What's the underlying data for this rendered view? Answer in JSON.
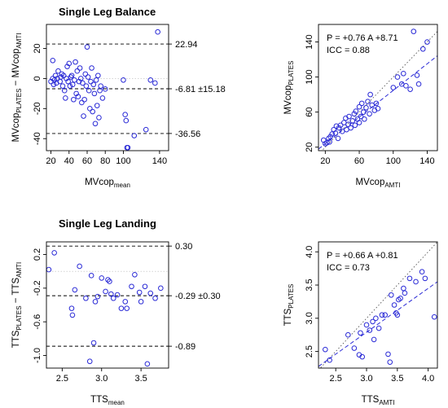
{
  "sections": [
    {
      "title": "Single Leg Balance"
    },
    {
      "title": "Single Leg Landing"
    }
  ],
  "chart_data": [
    {
      "type": "scatter",
      "xlabel": {
        "base": "MVcop",
        "sub": "mean"
      },
      "ylabel": {
        "parts": [
          {
            "base": "MVcop",
            "sub": "PLATES"
          },
          {
            "base": " − MVcop",
            "sub": "AMTI"
          }
        ]
      },
      "xlim": [
        15,
        150
      ],
      "ylim": [
        -48,
        36
      ],
      "xticks": [
        20,
        40,
        60,
        80,
        100,
        140
      ],
      "yticks": [
        -40,
        -20,
        0,
        20
      ],
      "ref_lines": [
        {
          "y": 22.94,
          "label": "22.94"
        },
        {
          "y": -6.81,
          "label": "-6.81 ±15.18"
        },
        {
          "y": -36.56,
          "label": "-36.56"
        }
      ],
      "zero_line": 0,
      "points": [
        [
          20,
          -2
        ],
        [
          22,
          0
        ],
        [
          22,
          12
        ],
        [
          23,
          -4
        ],
        [
          24,
          -1
        ],
        [
          25,
          2
        ],
        [
          26,
          -3
        ],
        [
          27,
          0
        ],
        [
          28,
          5
        ],
        [
          30,
          -2
        ],
        [
          31,
          1
        ],
        [
          32,
          3
        ],
        [
          33,
          -5
        ],
        [
          34,
          2
        ],
        [
          35,
          -8
        ],
        [
          36,
          -13
        ],
        [
          37,
          0
        ],
        [
          38,
          8
        ],
        [
          39,
          -2
        ],
        [
          40,
          10
        ],
        [
          41,
          -5
        ],
        [
          42,
          1
        ],
        [
          43,
          2
        ],
        [
          44,
          -4
        ],
        [
          45,
          -14
        ],
        [
          46,
          -1
        ],
        [
          47,
          11
        ],
        [
          48,
          -10
        ],
        [
          49,
          5
        ],
        [
          50,
          -12
        ],
        [
          51,
          -2
        ],
        [
          52,
          7
        ],
        [
          53,
          0
        ],
        [
          54,
          -16
        ],
        [
          55,
          -3
        ],
        [
          56,
          -25
        ],
        [
          57,
          -14
        ],
        [
          58,
          3
        ],
        [
          59,
          -5
        ],
        [
          60,
          21
        ],
        [
          61,
          1
        ],
        [
          62,
          -8
        ],
        [
          63,
          -20
        ],
        [
          64,
          -2
        ],
        [
          65,
          7
        ],
        [
          66,
          -22
        ],
        [
          67,
          -4
        ],
        [
          68,
          -10
        ],
        [
          69,
          -30
        ],
        [
          70,
          -1
        ],
        [
          71,
          -18
        ],
        [
          72,
          2
        ],
        [
          73,
          -26
        ],
        [
          74,
          -8
        ],
        [
          75,
          -5
        ],
        [
          77,
          -13
        ],
        [
          80,
          -7
        ],
        [
          100,
          -1
        ],
        [
          102,
          -24
        ],
        [
          103,
          -28
        ],
        [
          104,
          -46
        ],
        [
          105,
          -46
        ],
        [
          112,
          -38
        ],
        [
          125,
          -34
        ],
        [
          130,
          -1
        ],
        [
          135,
          -3
        ],
        [
          138,
          31
        ]
      ]
    },
    {
      "type": "scatter",
      "xlabel": {
        "base": "MVcop",
        "sub": "AMTI"
      },
      "ylabel": {
        "parts": [
          {
            "base": "MVcop",
            "sub": "PLATES"
          }
        ]
      },
      "xlim": [
        12,
        152
      ],
      "ylim": [
        16,
        160
      ],
      "xticks": [
        20,
        60,
        100,
        140
      ],
      "yticks": [
        20,
        60,
        100,
        140
      ],
      "annotation": [
        "P = +0.76 A +8.71",
        "ICC = 0.88"
      ],
      "fit": {
        "slope": 0.76,
        "intercept": 8.71
      },
      "identity": true,
      "points": [
        [
          18,
          28
        ],
        [
          20,
          24
        ],
        [
          22,
          25
        ],
        [
          24,
          30
        ],
        [
          25,
          26
        ],
        [
          26,
          32
        ],
        [
          28,
          35
        ],
        [
          30,
          40
        ],
        [
          32,
          36
        ],
        [
          33,
          44
        ],
        [
          35,
          30
        ],
        [
          36,
          42
        ],
        [
          38,
          45
        ],
        [
          40,
          38
        ],
        [
          42,
          48
        ],
        [
          44,
          53
        ],
        [
          45,
          40
        ],
        [
          47,
          46
        ],
        [
          48,
          55
        ],
        [
          50,
          42
        ],
        [
          52,
          50
        ],
        [
          54,
          58
        ],
        [
          55,
          45
        ],
        [
          56,
          61
        ],
        [
          58,
          52
        ],
        [
          60,
          48
        ],
        [
          60,
          66
        ],
        [
          62,
          55
        ],
        [
          63,
          70
        ],
        [
          65,
          60
        ],
        [
          66,
          52
        ],
        [
          68,
          65
        ],
        [
          70,
          72
        ],
        [
          72,
          58
        ],
        [
          73,
          80
        ],
        [
          75,
          68
        ],
        [
          78,
          62
        ],
        [
          80,
          70
        ],
        [
          82,
          64
        ],
        [
          100,
          88
        ],
        [
          105,
          100
        ],
        [
          110,
          92
        ],
        [
          112,
          104
        ],
        [
          115,
          90
        ],
        [
          120,
          86
        ],
        [
          124,
          152
        ],
        [
          128,
          102
        ],
        [
          130,
          92
        ],
        [
          135,
          132
        ],
        [
          140,
          140
        ]
      ]
    },
    {
      "type": "scatter",
      "xlabel": {
        "base": "TTS",
        "sub": "mean"
      },
      "ylabel": {
        "parts": [
          {
            "base": "TTS",
            "sub": "PLATES"
          },
          {
            "base": " − TTS",
            "sub": "AMTI"
          }
        ]
      },
      "xlim": [
        2.3,
        3.85
      ],
      "ylim": [
        -1.15,
        0.35
      ],
      "xticks": [
        2.5,
        3.0,
        3.5
      ],
      "yticks": [
        -1.0,
        -0.6,
        -0.2,
        0.2
      ],
      "ref_lines": [
        {
          "y": 0.3,
          "label": "0.30"
        },
        {
          "y": -0.29,
          "label": "-0.29 ±0.30"
        },
        {
          "y": -0.89,
          "label": "-0.89"
        }
      ],
      "zero_line": 0,
      "points": [
        [
          2.33,
          0.02
        ],
        [
          2.4,
          0.22
        ],
        [
          2.62,
          -0.44
        ],
        [
          2.63,
          -0.52
        ],
        [
          2.66,
          -0.22
        ],
        [
          2.72,
          0.06
        ],
        [
          2.8,
          -0.32
        ],
        [
          2.85,
          -1.07
        ],
        [
          2.87,
          -0.05
        ],
        [
          2.9,
          -0.85
        ],
        [
          2.92,
          -0.36
        ],
        [
          2.95,
          -0.3
        ],
        [
          3.0,
          -0.08
        ],
        [
          3.05,
          -0.24
        ],
        [
          3.08,
          -0.1
        ],
        [
          3.1,
          -0.12
        ],
        [
          3.12,
          -0.27
        ],
        [
          3.15,
          -0.32
        ],
        [
          3.2,
          -0.28
        ],
        [
          3.25,
          -0.44
        ],
        [
          3.3,
          -0.36
        ],
        [
          3.32,
          -0.44
        ],
        [
          3.38,
          -0.18
        ],
        [
          3.42,
          -0.04
        ],
        [
          3.48,
          -0.25
        ],
        [
          3.5,
          -0.36
        ],
        [
          3.55,
          -0.18
        ],
        [
          3.58,
          -1.1
        ],
        [
          3.62,
          -0.26
        ],
        [
          3.68,
          -0.32
        ],
        [
          3.75,
          -0.2
        ]
      ]
    },
    {
      "type": "scatter",
      "xlabel": {
        "base": "TTS",
        "sub": "AMTI"
      },
      "ylabel": {
        "parts": [
          {
            "base": "TTS",
            "sub": "PLATES"
          }
        ]
      },
      "xlim": [
        2.22,
        4.15
      ],
      "ylim": [
        2.25,
        4.15
      ],
      "xticks": [
        2.5,
        3.0,
        3.5,
        4.0
      ],
      "yticks": [
        2.5,
        3.0,
        3.5,
        4.0
      ],
      "annotation": [
        "P = +0.66 A +0.81",
        "ICC = 0.73"
      ],
      "fit": {
        "slope": 0.66,
        "intercept": 0.81
      },
      "identity": true,
      "points": [
        [
          2.33,
          2.53
        ],
        [
          2.4,
          2.37
        ],
        [
          2.7,
          2.75
        ],
        [
          2.8,
          2.55
        ],
        [
          2.88,
          2.45
        ],
        [
          2.9,
          2.78
        ],
        [
          2.93,
          2.42
        ],
        [
          3.0,
          2.9
        ],
        [
          3.05,
          2.82
        ],
        [
          3.1,
          2.95
        ],
        [
          3.12,
          2.68
        ],
        [
          3.15,
          3.0
        ],
        [
          3.2,
          2.85
        ],
        [
          3.25,
          3.05
        ],
        [
          3.3,
          3.05
        ],
        [
          3.35,
          2.46
        ],
        [
          3.38,
          2.34
        ],
        [
          3.4,
          3.35
        ],
        [
          3.45,
          3.2
        ],
        [
          3.48,
          3.08
        ],
        [
          3.5,
          3.05
        ],
        [
          3.52,
          3.28
        ],
        [
          3.55,
          3.3
        ],
        [
          3.6,
          3.45
        ],
        [
          3.62,
          3.38
        ],
        [
          3.7,
          3.6
        ],
        [
          3.8,
          3.55
        ],
        [
          3.9,
          3.7
        ],
        [
          3.95,
          3.6
        ],
        [
          4.1,
          3.02
        ]
      ]
    }
  ]
}
